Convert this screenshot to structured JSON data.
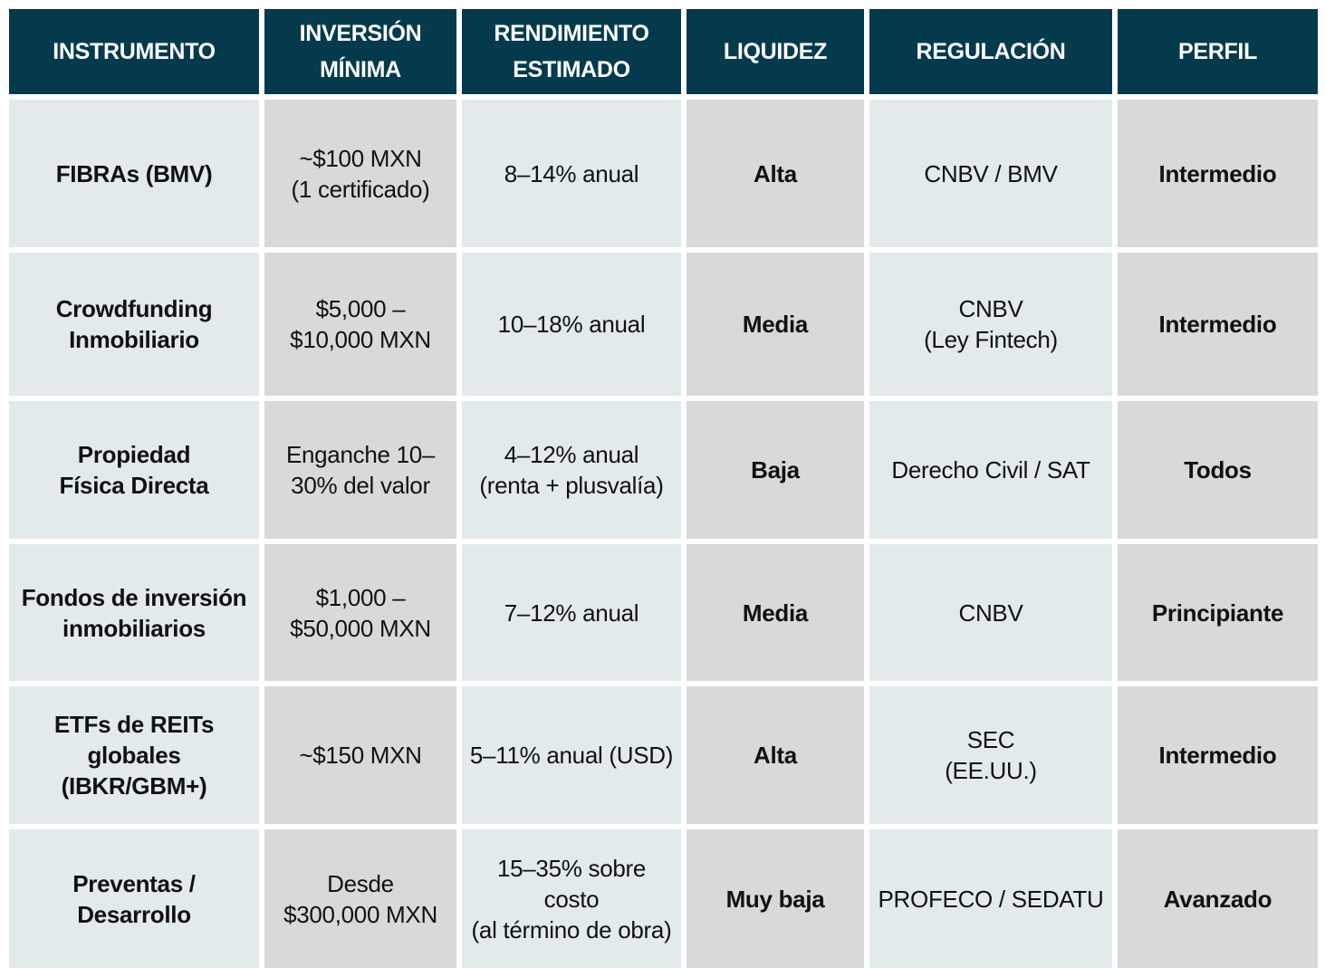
{
  "table": {
    "header": [
      [
        "INSTRUMENTO"
      ],
      [
        "INVERSIÓN",
        "MÍNIMA"
      ],
      [
        "RENDIMIENTO",
        "ESTIMADO"
      ],
      [
        "LIQUIDEZ"
      ],
      [
        "REGULACIÓN"
      ],
      [
        "PERFIL"
      ]
    ],
    "rows": [
      [
        [
          "FIBRAs (BMV)"
        ],
        [
          "~$100 MXN",
          "(1 certificado)"
        ],
        [
          "8–14% anual"
        ],
        [
          "Alta"
        ],
        [
          "CNBV / BMV"
        ],
        [
          "Intermedio"
        ]
      ],
      [
        [
          "Crowdfunding",
          "Inmobiliario"
        ],
        [
          "$5,000 –",
          "$10,000 MXN"
        ],
        [
          "10–18% anual"
        ],
        [
          "Media"
        ],
        [
          "CNBV",
          "(Ley Fintech)"
        ],
        [
          "Intermedio"
        ]
      ],
      [
        [
          "Propiedad",
          "Física Directa"
        ],
        [
          "Enganche 10–",
          "30% del valor"
        ],
        [
          "4–12% anual",
          "(renta + plusvalía)"
        ],
        [
          "Baja"
        ],
        [
          "Derecho Civil / SAT"
        ],
        [
          "Todos"
        ]
      ],
      [
        [
          "Fondos de inversión",
          "inmobiliarios"
        ],
        [
          "$1,000 –",
          "$50,000 MXN"
        ],
        [
          "7–12% anual"
        ],
        [
          "Media"
        ],
        [
          "CNBV"
        ],
        [
          "Principiante"
        ]
      ],
      [
        [
          "ETFs de REITs",
          "globales",
          "(IBKR/GBM+)"
        ],
        [
          "~$150 MXN"
        ],
        [
          "5–11% anual (USD)"
        ],
        [
          "Alta"
        ],
        [
          "SEC",
          "(EE.UU.)"
        ],
        [
          "Intermedio"
        ]
      ],
      [
        [
          "Preventas /",
          "Desarrollo"
        ],
        [
          "Desde",
          "$300,000 MXN"
        ],
        [
          "15–35% sobre",
          "costo",
          "(al término de obra)"
        ],
        [
          "Muy baja"
        ],
        [
          "PROFECO / SEDATU"
        ],
        [
          "Avanzado"
        ]
      ]
    ]
  }
}
